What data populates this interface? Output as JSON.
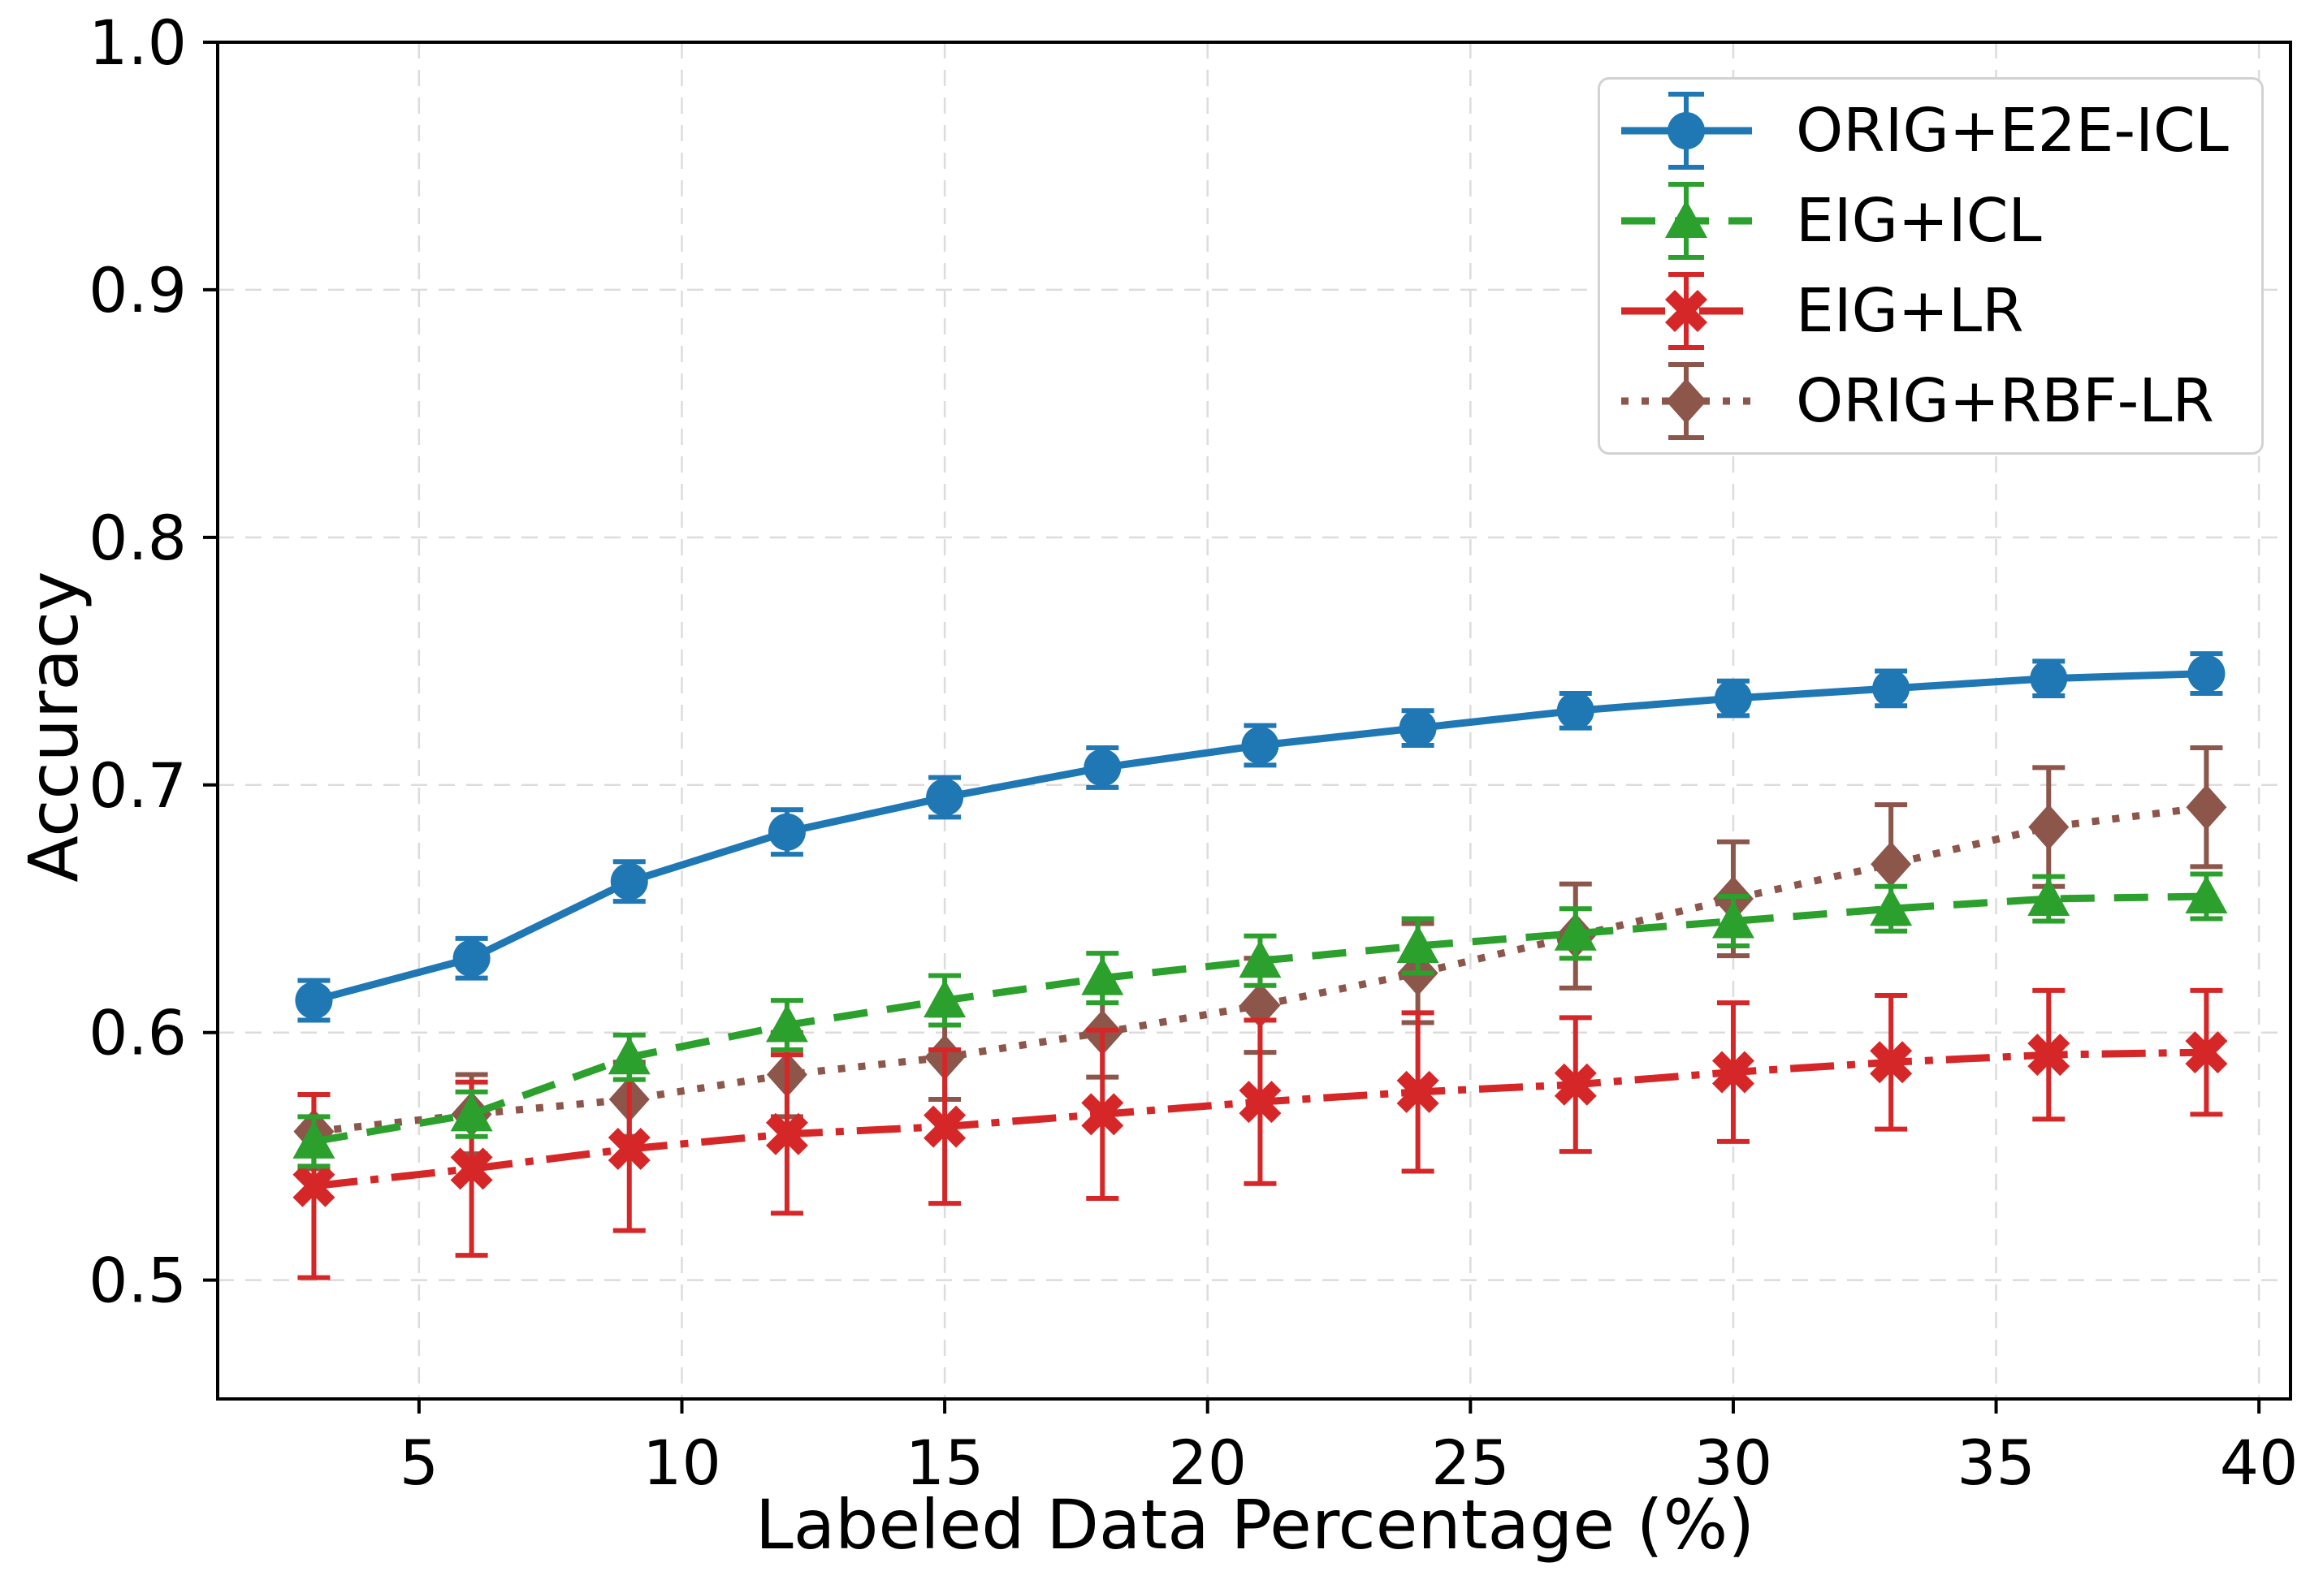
{
  "figure": {
    "xlabel": "Labeled Data Percentage (%)",
    "ylabel": "Accuracy",
    "background_color": "#ffffff",
    "grid_color": "#dcdcdc",
    "axis_color": "#000000",
    "legend_border_color": "#d2d2d2"
  },
  "legend": {
    "position": "upper right",
    "items": [
      {
        "label": "ORIG+E2E-ICL",
        "icon": "circle-marker-icon",
        "color": "#1f77b4"
      },
      {
        "label": "EIG+ICL",
        "icon": "triangle-marker-icon",
        "color": "#2ca02c"
      },
      {
        "label": "EIG+LR",
        "icon": "x-marker-icon",
        "color": "#d62728"
      },
      {
        "label": "ORIG+RBF-LR",
        "icon": "diamond-marker-icon",
        "color": "#8c564b"
      }
    ]
  },
  "chart_data": {
    "type": "line",
    "title": "",
    "xlabel": "Labeled Data Percentage (%)",
    "ylabel": "Accuracy",
    "grid": true,
    "legend_position": "upper right",
    "xlim": [
      1.17,
      40.6
    ],
    "ylim": [
      0.452,
      1.0
    ],
    "x_ticks": [
      5,
      10,
      15,
      20,
      25,
      30,
      35,
      40
    ],
    "y_ticks": [
      0.5,
      0.6,
      0.7,
      0.8,
      0.9,
      1.0
    ],
    "x": [
      3,
      6,
      9,
      12,
      15,
      18,
      21,
      24,
      27,
      30,
      33,
      36,
      39
    ],
    "draw_order": [
      0,
      3,
      2,
      1
    ],
    "series": [
      {
        "name": "ORIG+E2E-ICL",
        "color": "#1f77b4",
        "linestyle": "solid",
        "marker": "circle",
        "values": [
          0.613,
          0.63,
          0.661,
          0.681,
          0.695,
          0.707,
          0.716,
          0.723,
          0.73,
          0.735,
          0.739,
          0.743,
          0.745
        ],
        "errors": [
          0.008,
          0.008,
          0.008,
          0.009,
          0.008,
          0.008,
          0.008,
          0.007,
          0.007,
          0.007,
          0.007,
          0.007,
          0.008
        ]
      },
      {
        "name": "EIG+ICL",
        "color": "#2ca02c",
        "linestyle": "dashed",
        "marker": "triangle",
        "values": [
          0.556,
          0.567,
          0.59,
          0.603,
          0.613,
          0.622,
          0.629,
          0.635,
          0.64,
          0.645,
          0.65,
          0.654,
          0.655
        ],
        "errors": [
          0.01,
          0.009,
          0.009,
          0.01,
          0.01,
          0.01,
          0.01,
          0.011,
          0.01,
          0.01,
          0.009,
          0.009,
          0.009
        ]
      },
      {
        "name": "EIG+LR",
        "color": "#d62728",
        "linestyle": "dashdot",
        "marker": "x",
        "values": [
          0.538,
          0.545,
          0.553,
          0.559,
          0.562,
          0.567,
          0.572,
          0.576,
          0.579,
          0.584,
          0.588,
          0.591,
          0.592
        ],
        "errors": [
          0.037,
          0.035,
          0.033,
          0.032,
          0.031,
          0.034,
          0.033,
          0.032,
          0.027,
          0.028,
          0.027,
          0.026,
          0.025
        ]
      },
      {
        "name": "ORIG+RBF-LR",
        "color": "#8c564b",
        "linestyle": "dotted",
        "marker": "diamond",
        "values": [
          0.56,
          0.567,
          0.573,
          0.583,
          0.59,
          0.6,
          0.611,
          0.624,
          0.639,
          0.654,
          0.668,
          0.683,
          0.691
        ],
        "errors": [
          0.015,
          0.016,
          0.015,
          0.017,
          0.017,
          0.018,
          0.019,
          0.02,
          0.021,
          0.023,
          0.024,
          0.024,
          0.024
        ]
      }
    ]
  }
}
